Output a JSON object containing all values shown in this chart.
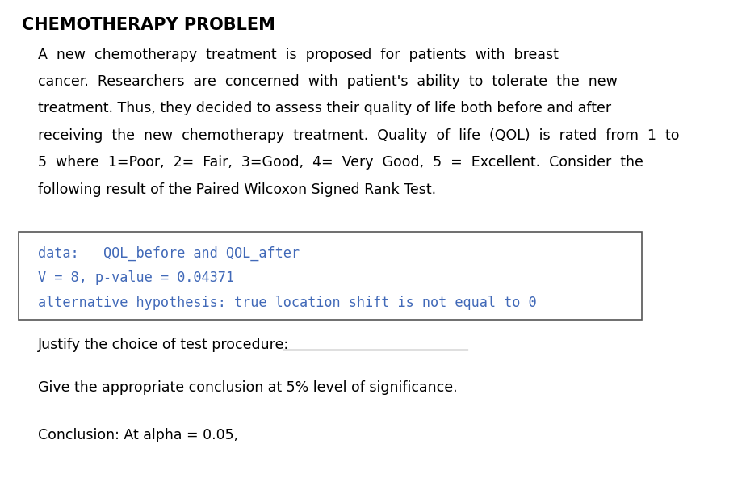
{
  "title": "CHEMOTHERAPY PROBLEM",
  "para_lines": [
    "A  new  chemotherapy  treatment  is  proposed  for  patients  with  breast",
    "cancer.  Researchers  are  concerned  with  patient's  ability  to  tolerate  the  new",
    "treatment. Thus, they decided to assess their quality of life both before and after",
    "receiving  the  new  chemotherapy  treatment.  Quality  of  life  (QOL)  is  rated  from  1  to",
    "5  where  1=Poor,  2=  Fair,  3=Good,  4=  Very  Good,  5  =  Excellent.  Consider  the",
    "following result of the Paired Wilcoxon Signed Rank Test."
  ],
  "code_lines": [
    "data:   QOL_before and QOL_after",
    "V = 8, p-value = 0.04371",
    "alternative hypothesis: true location shift is not equal to 0"
  ],
  "code_color": "#4169b8",
  "box_border_color": "#555555",
  "justify_label": "Justify the choice of test procedure:",
  "give_label": "Give the appropriate conclusion at 5% level of significance.",
  "conclusion_label": "Conclusion: At alpha = 0.05,",
  "background_color": "#ffffff",
  "title_fontsize": 15,
  "body_fontsize": 12.5,
  "code_fontsize": 12.2
}
